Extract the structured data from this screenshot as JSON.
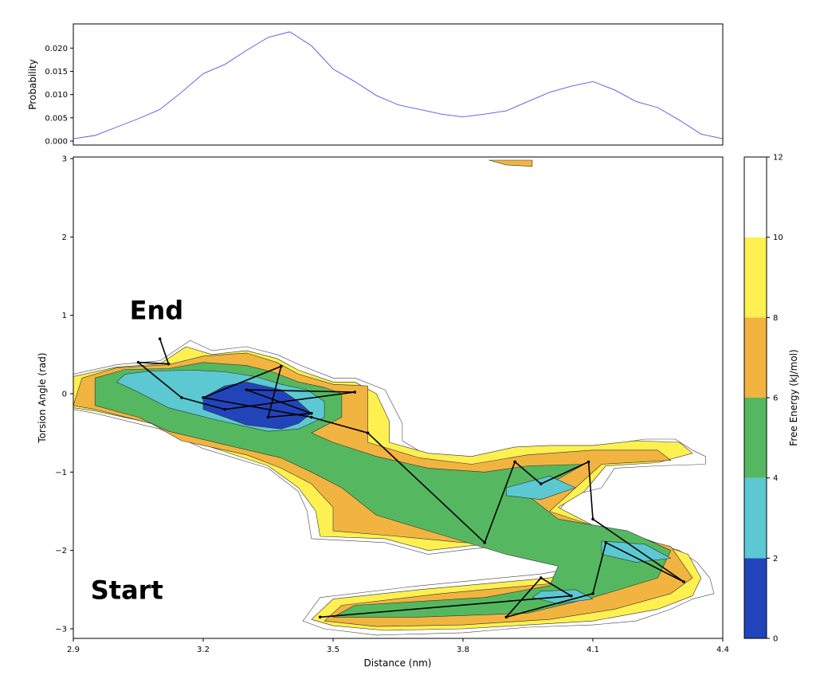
{
  "chart_data": [
    {
      "type": "line",
      "ylabel": "Probability",
      "xlim": [
        2.9,
        4.4
      ],
      "ylim": [
        0,
        0.024
      ],
      "yticks": [
        "0.000",
        "0.005",
        "0.010",
        "0.015",
        "0.020"
      ],
      "line_color": "#5555ee",
      "series": [
        {
          "x": [
            2.9,
            2.95,
            3.0,
            3.05,
            3.1,
            3.15,
            3.2,
            3.25,
            3.3,
            3.35,
            3.4,
            3.45,
            3.5,
            3.55,
            3.6,
            3.65,
            3.7,
            3.75,
            3.8,
            3.85,
            3.9,
            3.95,
            4.0,
            4.05,
            4.1,
            4.15,
            4.2,
            4.25,
            4.3,
            4.35,
            4.4
          ],
          "y": [
            0.0005,
            0.0012,
            0.003,
            0.0048,
            0.0068,
            0.0105,
            0.0145,
            0.0165,
            0.0195,
            0.0223,
            0.0235,
            0.0205,
            0.0155,
            0.0128,
            0.0098,
            0.0078,
            0.0068,
            0.0058,
            0.0052,
            0.0058,
            0.0065,
            0.0085,
            0.0105,
            0.0118,
            0.0128,
            0.011,
            0.0085,
            0.0072,
            0.0045,
            0.0015,
            0.0005
          ]
        }
      ]
    },
    {
      "type": "heatmap",
      "xlabel": "Distance (nm)",
      "ylabel": "Torsion Angle (rad)",
      "xlim": [
        2.9,
        4.4
      ],
      "ylim": [
        -3.1,
        3.0
      ],
      "xticks": [
        "2.9",
        "3.2",
        "3.5",
        "3.8",
        "4.1",
        "4.4"
      ],
      "yticks": [
        "−3",
        "−2",
        "−1",
        "0",
        "1",
        "2",
        "3"
      ],
      "colorbar": {
        "label": "Free Energy (kJ/mol)",
        "ticks": [
          "0",
          "2",
          "4",
          "6",
          "8",
          "10",
          "12"
        ],
        "bands": [
          {
            "from": 0,
            "to": 2,
            "color": "#2244bb"
          },
          {
            "from": 2,
            "to": 4,
            "color": "#5bc8d2"
          },
          {
            "from": 4,
            "to": 6,
            "color": "#55b860"
          },
          {
            "from": 6,
            "to": 8,
            "color": "#f2b440"
          },
          {
            "from": 8,
            "to": 10,
            "color": "#fdf050"
          },
          {
            "from": 10,
            "to": 12,
            "color": "#ffffff"
          }
        ]
      },
      "contours": {
        "outline": [
          [
            2.9,
            0.25
          ],
          [
            3.0,
            0.37
          ],
          [
            3.1,
            0.42
          ],
          [
            3.17,
            0.68
          ],
          [
            3.22,
            0.55
          ],
          [
            3.3,
            0.6
          ],
          [
            3.37,
            0.5
          ],
          [
            3.43,
            0.35
          ],
          [
            3.5,
            0.2
          ],
          [
            3.55,
            0.2
          ],
          [
            3.62,
            0.05
          ],
          [
            3.66,
            -0.38
          ],
          [
            3.66,
            -0.6
          ],
          [
            3.72,
            -0.8
          ],
          [
            3.82,
            -0.84
          ],
          [
            3.92,
            -0.72
          ],
          [
            4.0,
            -0.7
          ],
          [
            4.05,
            -0.75
          ],
          [
            4.1,
            -0.7
          ],
          [
            4.17,
            -0.62
          ],
          [
            4.22,
            -0.58
          ],
          [
            4.29,
            -0.58
          ],
          [
            4.33,
            -0.72
          ],
          [
            4.36,
            -0.8
          ],
          [
            4.36,
            -0.9
          ],
          [
            4.25,
            -0.92
          ],
          [
            4.15,
            -0.95
          ],
          [
            4.12,
            -1.2
          ],
          [
            4.05,
            -1.3
          ],
          [
            4.02,
            -1.5
          ],
          [
            4.1,
            -1.7
          ],
          [
            4.2,
            -1.85
          ],
          [
            4.3,
            -2.0
          ],
          [
            4.34,
            -2.15
          ],
          [
            4.37,
            -2.35
          ],
          [
            4.38,
            -2.55
          ],
          [
            4.33,
            -2.62
          ],
          [
            4.28,
            -2.75
          ],
          [
            4.2,
            -2.9
          ],
          [
            4.1,
            -2.95
          ],
          [
            3.95,
            -2.98
          ],
          [
            3.8,
            -3.05
          ],
          [
            3.6,
            -3.08
          ],
          [
            3.48,
            -3.0
          ],
          [
            3.43,
            -2.9
          ],
          [
            3.47,
            -2.6
          ],
          [
            3.7,
            -2.45
          ],
          [
            3.98,
            -2.3
          ],
          [
            4.08,
            -2.2
          ],
          [
            3.98,
            -2.0
          ],
          [
            3.88,
            -1.95
          ],
          [
            3.82,
            -1.98
          ],
          [
            3.72,
            -2.05
          ],
          [
            3.62,
            -1.9
          ],
          [
            3.45,
            -1.85
          ],
          [
            3.44,
            -1.5
          ],
          [
            3.42,
            -1.25
          ],
          [
            3.35,
            -0.95
          ],
          [
            3.2,
            -0.7
          ],
          [
            3.1,
            -0.45
          ],
          [
            2.95,
            -0.25
          ],
          [
            2.9,
            -0.2
          ]
        ],
        "level8": [
          [
            2.9,
            0.22
          ],
          [
            3.0,
            0.34
          ],
          [
            3.1,
            0.38
          ],
          [
            3.16,
            0.6
          ],
          [
            3.22,
            0.5
          ],
          [
            3.3,
            0.55
          ],
          [
            3.37,
            0.45
          ],
          [
            3.42,
            0.3
          ],
          [
            3.5,
            0.15
          ],
          [
            3.55,
            0.15
          ],
          [
            3.6,
            0.0
          ],
          [
            3.63,
            -0.35
          ],
          [
            3.63,
            -0.62
          ],
          [
            3.72,
            -0.76
          ],
          [
            3.82,
            -0.8
          ],
          [
            3.92,
            -0.68
          ],
          [
            4.0,
            -0.66
          ],
          [
            4.1,
            -0.66
          ],
          [
            4.2,
            -0.6
          ],
          [
            4.3,
            -0.62
          ],
          [
            4.33,
            -0.76
          ],
          [
            4.25,
            -0.88
          ],
          [
            4.13,
            -0.92
          ],
          [
            4.08,
            -1.25
          ],
          [
            4.02,
            -1.45
          ],
          [
            4.1,
            -1.68
          ],
          [
            4.22,
            -1.85
          ],
          [
            4.32,
            -2.05
          ],
          [
            4.35,
            -2.35
          ],
          [
            4.33,
            -2.58
          ],
          [
            4.25,
            -2.75
          ],
          [
            4.1,
            -2.9
          ],
          [
            3.95,
            -2.95
          ],
          [
            3.8,
            -3.0
          ],
          [
            3.62,
            -3.02
          ],
          [
            3.5,
            -2.96
          ],
          [
            3.45,
            -2.88
          ],
          [
            3.5,
            -2.62
          ],
          [
            3.7,
            -2.5
          ],
          [
            4.0,
            -2.35
          ],
          [
            4.1,
            -2.2
          ],
          [
            4.0,
            -1.95
          ],
          [
            3.88,
            -1.9
          ],
          [
            3.8,
            -1.95
          ],
          [
            3.72,
            -2.0
          ],
          [
            3.62,
            -1.85
          ],
          [
            3.47,
            -1.82
          ],
          [
            3.46,
            -1.5
          ],
          [
            3.42,
            -1.2
          ],
          [
            3.35,
            -0.92
          ],
          [
            3.2,
            -0.65
          ],
          [
            3.1,
            -0.4
          ],
          [
            2.95,
            -0.22
          ],
          [
            2.9,
            -0.18
          ]
        ],
        "level6": [
          [
            2.92,
            0.2
          ],
          [
            3.0,
            0.33
          ],
          [
            3.12,
            0.37
          ],
          [
            3.2,
            0.48
          ],
          [
            3.3,
            0.52
          ],
          [
            3.37,
            0.4
          ],
          [
            3.42,
            0.25
          ],
          [
            3.5,
            0.12
          ],
          [
            3.58,
            0.1
          ],
          [
            3.58,
            -0.35
          ],
          [
            3.58,
            -0.62
          ],
          [
            3.7,
            -0.82
          ],
          [
            3.82,
            -0.9
          ],
          [
            3.95,
            -0.78
          ],
          [
            4.1,
            -0.72
          ],
          [
            4.25,
            -0.72
          ],
          [
            4.28,
            -0.85
          ],
          [
            4.12,
            -0.9
          ],
          [
            4.06,
            -1.2
          ],
          [
            4.0,
            -1.5
          ],
          [
            4.12,
            -1.72
          ],
          [
            4.28,
            -1.95
          ],
          [
            4.33,
            -2.35
          ],
          [
            4.28,
            -2.55
          ],
          [
            4.15,
            -2.75
          ],
          [
            4.0,
            -2.88
          ],
          [
            3.8,
            -2.95
          ],
          [
            3.6,
            -2.97
          ],
          [
            3.48,
            -2.9
          ],
          [
            3.52,
            -2.7
          ],
          [
            3.75,
            -2.55
          ],
          [
            4.05,
            -2.4
          ],
          [
            4.08,
            -2.15
          ],
          [
            3.95,
            -1.92
          ],
          [
            3.8,
            -1.9
          ],
          [
            3.65,
            -1.82
          ],
          [
            3.5,
            -1.75
          ],
          [
            3.5,
            -1.45
          ],
          [
            3.45,
            -1.15
          ],
          [
            3.38,
            -0.95
          ],
          [
            3.3,
            -0.78
          ],
          [
            3.15,
            -0.6
          ],
          [
            3.08,
            -0.38
          ],
          [
            2.95,
            -0.2
          ],
          [
            2.9,
            -0.15
          ]
        ],
        "level4": [
          [
            2.95,
            0.2
          ],
          [
            3.02,
            0.31
          ],
          [
            3.12,
            0.32
          ],
          [
            3.2,
            0.4
          ],
          [
            3.3,
            0.36
          ],
          [
            3.36,
            0.28
          ],
          [
            3.42,
            0.15
          ],
          [
            3.48,
            0.08
          ],
          [
            3.52,
            0.0
          ],
          [
            3.52,
            -0.3
          ],
          [
            3.45,
            -0.5
          ],
          [
            3.5,
            -0.62
          ],
          [
            3.6,
            -0.8
          ],
          [
            3.72,
            -0.95
          ],
          [
            3.85,
            -1.0
          ],
          [
            3.95,
            -0.92
          ],
          [
            4.08,
            -0.9
          ],
          [
            4.0,
            -1.15
          ],
          [
            3.95,
            -1.3
          ],
          [
            4.02,
            -1.6
          ],
          [
            4.18,
            -1.75
          ],
          [
            4.28,
            -2.0
          ],
          [
            4.25,
            -2.35
          ],
          [
            4.1,
            -2.6
          ],
          [
            3.95,
            -2.8
          ],
          [
            3.7,
            -2.85
          ],
          [
            3.5,
            -2.85
          ],
          [
            3.55,
            -2.7
          ],
          [
            3.85,
            -2.6
          ],
          [
            4.0,
            -2.45
          ],
          [
            4.02,
            -2.2
          ],
          [
            3.9,
            -2.05
          ],
          [
            3.75,
            -1.8
          ],
          [
            3.6,
            -1.55
          ],
          [
            3.52,
            -1.2
          ],
          [
            3.45,
            -1.0
          ],
          [
            3.38,
            -0.82
          ],
          [
            3.25,
            -0.65
          ],
          [
            3.12,
            -0.48
          ],
          [
            3.05,
            -0.3
          ],
          [
            2.95,
            -0.15
          ]
        ],
        "level2": [
          [
            3.02,
            0.25
          ],
          [
            3.08,
            0.29
          ],
          [
            3.18,
            0.3
          ],
          [
            3.25,
            0.28
          ],
          [
            3.32,
            0.22
          ],
          [
            3.38,
            0.12
          ],
          [
            3.44,
            0.05
          ],
          [
            3.48,
            -0.1
          ],
          [
            3.48,
            -0.3
          ],
          [
            3.42,
            -0.45
          ],
          [
            3.35,
            -0.48
          ],
          [
            3.3,
            -0.42
          ],
          [
            3.22,
            -0.32
          ],
          [
            3.12,
            -0.18
          ],
          [
            3.05,
            0.02
          ],
          [
            3.0,
            0.15
          ]
        ],
        "level0": [
          [
            3.2,
            -0.05
          ],
          [
            3.25,
            0.1
          ],
          [
            3.3,
            0.15
          ],
          [
            3.38,
            0.05
          ],
          [
            3.42,
            -0.1
          ],
          [
            3.45,
            -0.25
          ],
          [
            3.42,
            -0.38
          ],
          [
            3.38,
            -0.45
          ],
          [
            3.3,
            -0.4
          ],
          [
            3.25,
            -0.3
          ],
          [
            3.2,
            -0.2
          ]
        ],
        "islands_cyan": [
          [
            3.9,
            -1.2
          ],
          [
            4.0,
            -1.05
          ],
          [
            4.06,
            -1.2
          ],
          [
            3.98,
            -1.35
          ],
          [
            3.9,
            -1.3
          ]
        ],
        "islands_cyan2": [
          [
            4.12,
            -1.88
          ],
          [
            4.22,
            -1.92
          ],
          [
            4.28,
            -2.1
          ],
          [
            4.2,
            -2.15
          ],
          [
            4.12,
            -2.05
          ]
        ],
        "islands_cyan3": [
          [
            3.98,
            -2.52
          ],
          [
            4.06,
            -2.5
          ],
          [
            4.1,
            -2.62
          ],
          [
            4.02,
            -2.68
          ],
          [
            3.96,
            -2.6
          ]
        ],
        "top_blip": [
          [
            3.86,
            2.98
          ],
          [
            3.96,
            2.98
          ],
          [
            3.96,
            2.9
          ],
          [
            3.9,
            2.92
          ]
        ]
      },
      "trajectory": {
        "color": "#000000",
        "points": [
          [
            3.47,
            -2.85
          ],
          [
            4.05,
            -2.58
          ],
          [
            3.98,
            -2.35
          ],
          [
            3.9,
            -2.85
          ],
          [
            4.1,
            -2.55
          ],
          [
            4.13,
            -1.9
          ],
          [
            4.31,
            -2.4
          ],
          [
            4.1,
            -1.6
          ],
          [
            4.09,
            -0.87
          ],
          [
            3.98,
            -1.15
          ],
          [
            3.92,
            -0.87
          ],
          [
            3.85,
            -1.9
          ],
          [
            3.58,
            -0.5
          ],
          [
            3.45,
            -0.3
          ],
          [
            3.2,
            -0.05
          ],
          [
            3.38,
            0.35
          ],
          [
            3.35,
            -0.3
          ],
          [
            3.45,
            -0.25
          ],
          [
            3.3,
            0.05
          ],
          [
            3.55,
            0.02
          ],
          [
            3.25,
            -0.2
          ],
          [
            3.15,
            -0.05
          ],
          [
            3.05,
            0.4
          ],
          [
            3.12,
            0.38
          ],
          [
            3.1,
            0.7
          ]
        ]
      },
      "annotations": [
        {
          "text": "End",
          "x": 3.03,
          "y": 0.95
        },
        {
          "text": "Start",
          "x": 2.94,
          "y": -2.62
        }
      ]
    }
  ]
}
